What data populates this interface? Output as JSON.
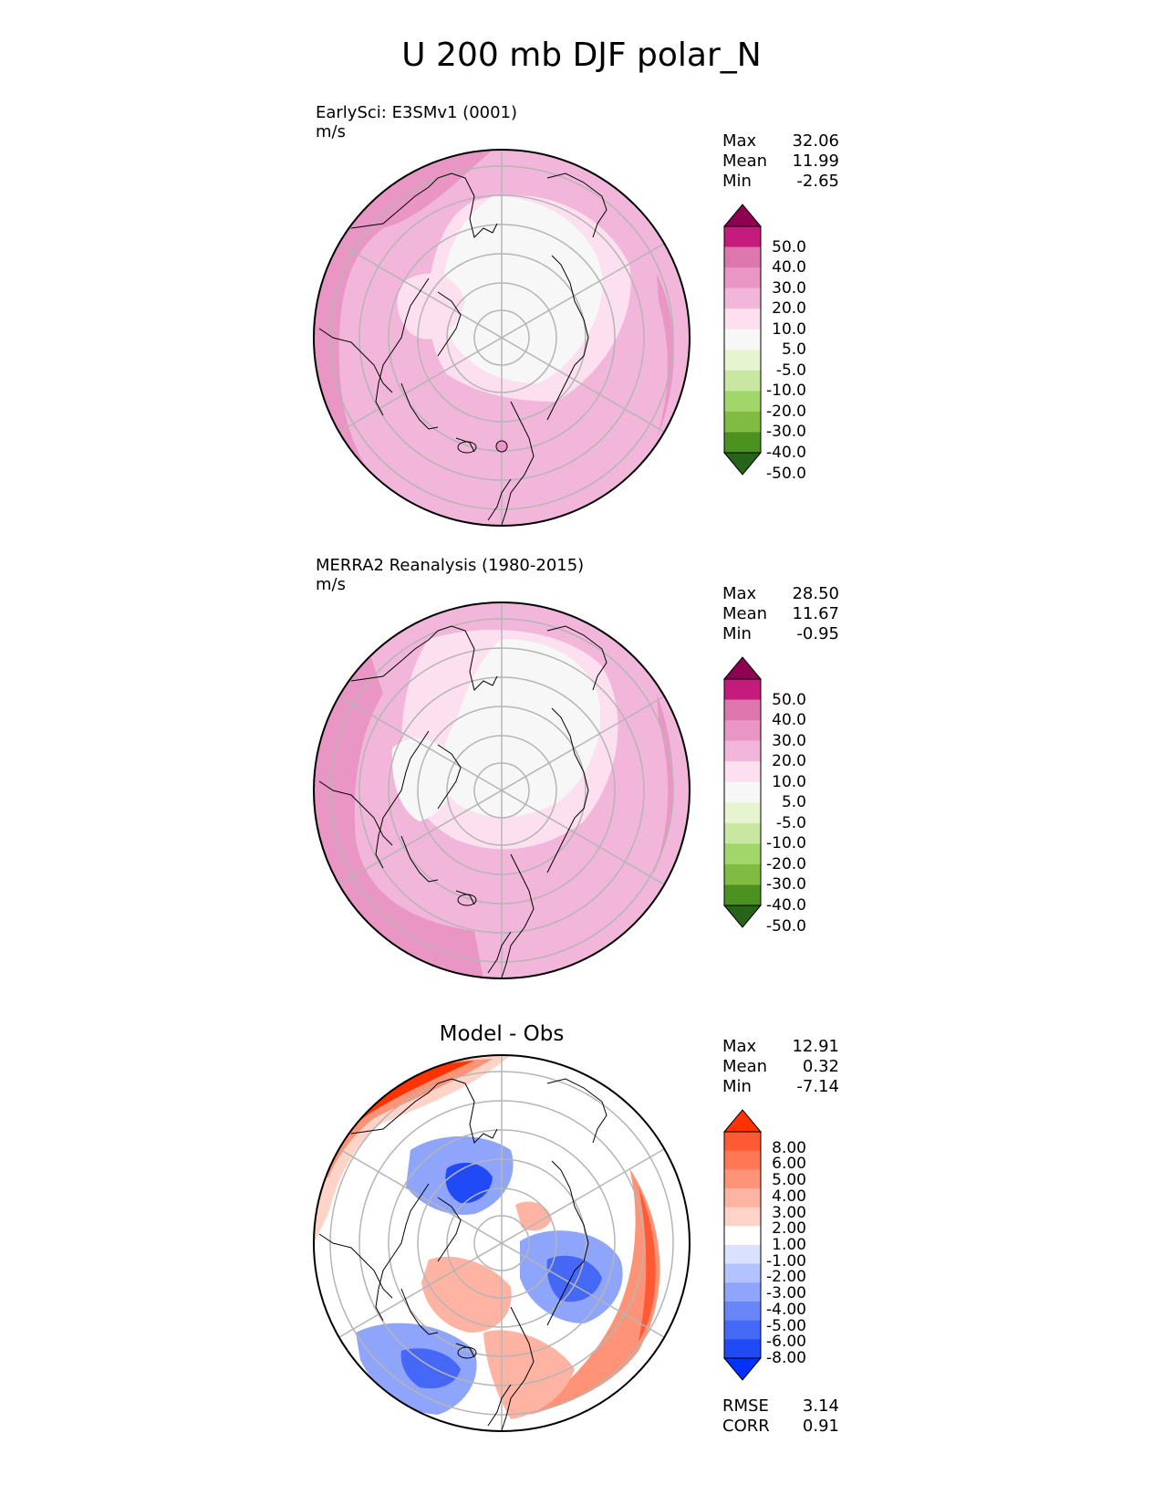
{
  "title": "U 200 mb DJF polar_N",
  "panels": [
    {
      "name": "EarlySci: E3SMv1 (0001)",
      "units": "m/s",
      "stats": [
        {
          "label": "Max",
          "value": "32.06"
        },
        {
          "label": "Mean",
          "value": "11.99"
        },
        {
          "label": "Min",
          "value": "-2.65"
        }
      ],
      "colorbar_labels": [
        "50.0",
        "40.0",
        "30.0",
        "20.0",
        "10.0",
        "5.0",
        "-5.0",
        "-10.0",
        "-20.0",
        "-30.0",
        "-40.0",
        "-50.0"
      ]
    },
    {
      "name": "MERRA2 Reanalysis (1980-2015)",
      "units": "m/s",
      "stats": [
        {
          "label": "Max",
          "value": "28.50"
        },
        {
          "label": "Mean",
          "value": "11.67"
        },
        {
          "label": "Min",
          "value": "-0.95"
        }
      ],
      "colorbar_labels": [
        "50.0",
        "40.0",
        "30.0",
        "20.0",
        "10.0",
        "5.0",
        "-5.0",
        "-10.0",
        "-20.0",
        "-30.0",
        "-40.0",
        "-50.0"
      ]
    },
    {
      "name": "Model - Obs",
      "units": "",
      "stats": [
        {
          "label": "Max",
          "value": "12.91"
        },
        {
          "label": "Mean",
          "value": "0.32"
        },
        {
          "label": "Min",
          "value": "-7.14"
        }
      ],
      "colorbar_labels": [
        "8.00",
        "6.00",
        "5.00",
        "4.00",
        "3.00",
        "2.00",
        "1.00",
        "-1.00",
        "-2.00",
        "-3.00",
        "-4.00",
        "-5.00",
        "-6.00",
        "-8.00"
      ],
      "metrics": [
        {
          "label": "RMSE",
          "value": "3.14"
        },
        {
          "label": "CORR",
          "value": "0.91"
        }
      ]
    }
  ],
  "colors": {
    "pink_scale": [
      "#8e0152",
      "#c51b7d",
      "#de77ae",
      "#e996c4",
      "#f1b6da",
      "#fde0ef",
      "#f7f7f7",
      "#e6f5d0",
      "#c8e8a2",
      "#a1d76a",
      "#7fbc41",
      "#4d9221",
      "#276419"
    ],
    "diff_scale": [
      "#ff3300",
      "#ff5a33",
      "#ff7755",
      "#ff9377",
      "#ffb3a2",
      "#ffd3c8",
      "#ffffff",
      "#d9e1ff",
      "#b3c3ff",
      "#8ea5fb",
      "#6886f7",
      "#4668f6",
      "#1f4af5",
      "#0033ff"
    ],
    "grid": "#b5b5b5",
    "coast": "#000000"
  }
}
